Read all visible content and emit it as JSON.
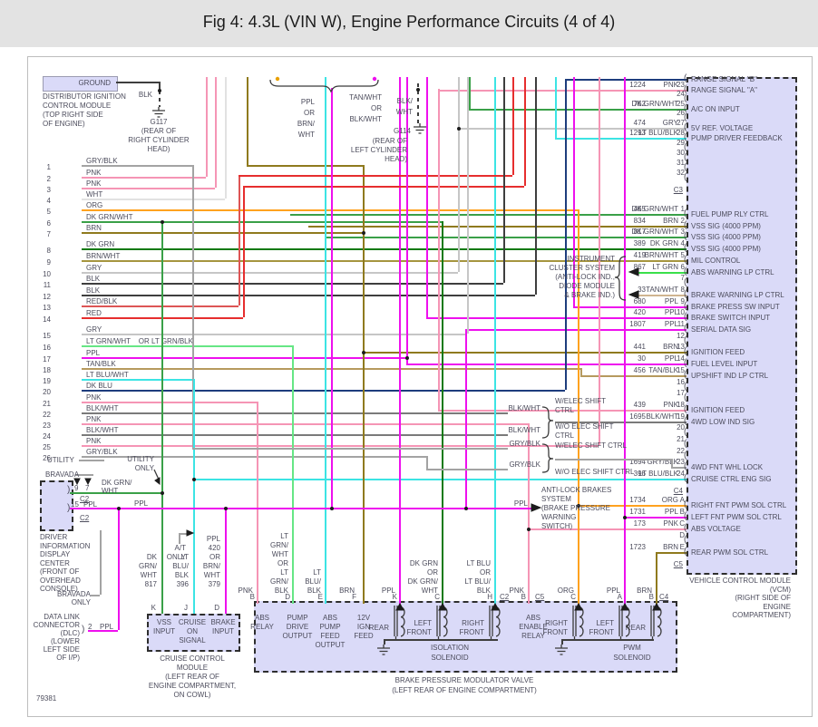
{
  "title": "Fig 4: 4.3L (VIN W), Engine Performance Circuits (4 of 4)",
  "doc_number": "79381",
  "colors": {
    "pnk": "#f595b5",
    "ppl": "#ee10ee",
    "brn": "#8f7a1e",
    "brn_wht": "#a6953f",
    "dk_grn": "#117a11",
    "dk_grn_wht": "#3aa048",
    "lt_grn": "#3ae04a",
    "lt_grn_wht": "#66e685",
    "gry": "#c6c6c6",
    "gry_blk": "#a3a3a3",
    "blk": "#3e3e3e",
    "blk_wht": "#7a7a7a",
    "wht": "#e2e2e2",
    "org": "#ffa21f",
    "red": "#e62e2e",
    "red_blk": "#dd5555",
    "lt_blu": "#3ce4e4",
    "dk_blu": "#1e3d7d",
    "tan_blk": "#b69a5e",
    "tan_wht": "#cfb490",
    "text": "#4c4c5c",
    "module_fill": "#dadaf8",
    "header_bg": "#e3e3e3",
    "panel_border": "#bdbdbd"
  },
  "left_pins": [
    {
      "pin": "1",
      "label": "GRY/BLK",
      "c": "gry_blk"
    },
    {
      "pin": "2",
      "label": "PNK",
      "c": "pnk"
    },
    {
      "pin": "3",
      "label": "PNK",
      "c": "pnk"
    },
    {
      "pin": "4",
      "label": "WHT",
      "c": "wht"
    },
    {
      "pin": "5",
      "label": "ORG",
      "c": "org"
    },
    {
      "pin": "6",
      "label": "DK GRN/WHT",
      "c": "dk_grn_wht"
    },
    {
      "pin": "7",
      "label": "BRN",
      "c": "brn"
    },
    {
      "pin": "8",
      "label": "DK GRN",
      "c": "dk_grn"
    },
    {
      "pin": "9",
      "label": "BRN/WHT",
      "c": "brn_wht"
    },
    {
      "pin": "10",
      "label": "GRY",
      "c": "gry"
    },
    {
      "pin": "11",
      "label": "BLK",
      "c": "blk"
    },
    {
      "pin": "12",
      "label": "BLK",
      "c": "blk"
    },
    {
      "pin": "13",
      "label": "RED/BLK",
      "c": "red_blk"
    },
    {
      "pin": "14",
      "label": "RED",
      "c": "red"
    },
    {
      "pin": "15",
      "label": "GRY",
      "c": "gry"
    },
    {
      "pin": "16",
      "label": "LT GRN/WHT    OR LT GRN/BLK",
      "c": "lt_grn_wht"
    },
    {
      "pin": "17",
      "label": "PPL",
      "c": "ppl"
    },
    {
      "pin": "18",
      "label": "TAN/BLK",
      "c": "tan_blk"
    },
    {
      "pin": "19",
      "label": "LT BLU/WHT",
      "c": "lt_blu"
    },
    {
      "pin": "20",
      "label": "DK BLU",
      "c": "dk_blu"
    },
    {
      "pin": "21",
      "label": "PNK",
      "c": "pnk"
    },
    {
      "pin": "22",
      "label": "BLK/WHT",
      "c": "blk_wht"
    },
    {
      "pin": "23",
      "label": "PNK",
      "c": "pnk"
    },
    {
      "pin": "24",
      "label": "BLK/WHT",
      "c": "blk_wht"
    },
    {
      "pin": "25",
      "label": "PNK",
      "c": "pnk"
    },
    {
      "pin": "26",
      "label": "GRY/BLK",
      "c": "gry_blk"
    }
  ],
  "dist_module": {
    "box_label": "GROUND",
    "lines": [
      "DISTRIBUTOR IGNITION",
      "CONTROL MODULE",
      "(TOP RIGHT SIDE",
      "OF ENGINE)"
    ],
    "wire": "BLK",
    "ground_id": "G117",
    "ground_loc": [
      "(REAR OF",
      "RIGHT CYLINDER",
      "HEAD)"
    ]
  },
  "g114": {
    "id": "G114",
    "loc": [
      "(REAR OF",
      "LEFT CYLINDER",
      "HEAD)"
    ]
  },
  "bundle_labels": {
    "a": [
      "PPL",
      "OR",
      "BRN/",
      "WHT"
    ],
    "b": [
      "TAN/WHT",
      "OR",
      "BLK/WHT"
    ],
    "c": [
      "BLK/",
      "WHT"
    ]
  },
  "vcm": {
    "connectors": [
      "C3",
      "C4",
      "C5"
    ],
    "c3_rows": [
      {
        "num": "",
        "color": "",
        "pin": "",
        "label": "RANGE SIGNAL \"B\""
      },
      {
        "num": "1224",
        "color": "PNK",
        "pin": "23",
        "label": "RANGE SIGNAL \"A\""
      },
      {
        "num": "",
        "color": "",
        "pin": "24",
        "label": ""
      },
      {
        "num": "762",
        "color": "DK GRN/WHT",
        "pin": "25",
        "label": "A/C ON INPUT"
      },
      {
        "num": "",
        "color": "",
        "pin": "26",
        "label": ""
      },
      {
        "num": "474",
        "color": "GRY",
        "pin": "27",
        "label": "5V REF. VOLTAGE"
      },
      {
        "num": "1293",
        "color": "LT BLU/BLK",
        "pin": "28",
        "label": "PUMP DRIVER FEEDBACK"
      },
      {
        "num": "",
        "color": "",
        "pin": "29",
        "label": ""
      },
      {
        "num": "",
        "color": "",
        "pin": "30",
        "label": ""
      },
      {
        "num": "",
        "color": "",
        "pin": "31",
        "label": ""
      },
      {
        "num": "",
        "color": "",
        "pin": "32",
        "label": ""
      }
    ],
    "c4_rows": [
      {
        "num": "465",
        "color": "DK GRN/WHT",
        "pin": "1",
        "label": "FUEL PUMP RLY CTRL"
      },
      {
        "num": "834",
        "color": "BRN",
        "pin": "2",
        "label": "VSS SIG (4000 PPM)"
      },
      {
        "num": "817",
        "color": "DK GRN/WHT",
        "pin": "3",
        "label": "VSS SIG (4000 PPM)"
      },
      {
        "num": "389",
        "color": "DK GRN",
        "pin": "4",
        "label": "VSS SIG (4000 PPM)"
      },
      {
        "num": "419",
        "color": "BRN/WHT",
        "pin": "5",
        "label": "MIL CONTROL"
      },
      {
        "num": "867",
        "color": "LT GRN",
        "pin": "6",
        "label": "ABS WARNING LP CTRL"
      },
      {
        "num": "",
        "color": "",
        "pin": "7",
        "label": ""
      },
      {
        "num": "33",
        "color": "TAN/WHT",
        "pin": "8",
        "label": "BRAKE WARNING LP CTRL"
      },
      {
        "num": "680",
        "color": "PPL",
        "pin": "9",
        "label": "BRAKE PRESS SW INPUT"
      },
      {
        "num": "420",
        "color": "PPL",
        "pin": "10",
        "label": "BRAKE SWITCH INPUT"
      },
      {
        "num": "1807",
        "color": "PPL",
        "pin": "11",
        "label": "SERIAL DATA SIG"
      },
      {
        "num": "",
        "color": "",
        "pin": "12",
        "label": ""
      },
      {
        "num": "441",
        "color": "BRN",
        "pin": "13",
        "label": "IGNITION FEED"
      },
      {
        "num": "30",
        "color": "PPL",
        "pin": "14",
        "label": "FUEL LEVEL INPUT"
      },
      {
        "num": "456",
        "color": "TAN/BLK",
        "pin": "15",
        "label": "UPSHIFT IND LP CTRL"
      },
      {
        "num": "",
        "color": "",
        "pin": "16",
        "label": ""
      },
      {
        "num": "",
        "color": "",
        "pin": "17",
        "label": ""
      },
      {
        "num": "439",
        "color": "PNK",
        "pin": "18",
        "label": "IGNITION FEED"
      },
      {
        "num": "1695",
        "color": "BLK/WHT",
        "pin": "19",
        "label": "4WD LOW IND SIG"
      },
      {
        "num": "",
        "color": "",
        "pin": "20",
        "label": ""
      },
      {
        "num": "",
        "color": "",
        "pin": "21",
        "label": ""
      },
      {
        "num": "",
        "color": "",
        "pin": "22",
        "label": ""
      },
      {
        "num": "1694",
        "color": "GRY/BLK",
        "pin": "23",
        "label": "4WD FNT WHL LOCK"
      },
      {
        "num": "396",
        "color": "LT BLU/BLK",
        "pin": "24",
        "label": "CRUISE CTRL ENG SIG"
      }
    ],
    "c5_rows": [
      {
        "num": "1734",
        "color": "ORG",
        "pin": "A",
        "label": "RIGHT FNT PWM SOL CTRL"
      },
      {
        "num": "1731",
        "color": "PPL",
        "pin": "B",
        "label": "LEFT FNT PWM SOL CTRL"
      },
      {
        "num": "173",
        "color": "PNK",
        "pin": "C",
        "label": "ABS VOLTAGE"
      },
      {
        "num": "",
        "color": "",
        "pin": "D",
        "label": ""
      },
      {
        "num": "1723",
        "color": "BRN",
        "pin": "E",
        "label": "REAR PWM SOL CTRL"
      }
    ],
    "footer": [
      "VEHICLE CONTROL MODULE",
      "(VCM)",
      "(RIGHT SIDE OF",
      "ENGINE",
      "COMPARTMENT)"
    ]
  },
  "cluster": {
    "lines": [
      "INSTRUMENT",
      "CLUSTER SYSTEM",
      "(ANTI-LOCK IND.,",
      "DIODE MODULE",
      "& BRAKE IND.)"
    ]
  },
  "shift": {
    "groups": [
      {
        "wire": "BLK/WHT",
        "top": [
          "W/ELEC SHIFT",
          "CTRL"
        ],
        "bottom": [
          "W/O ELEC SHIFT",
          "CTRL"
        ]
      },
      {
        "wire": "GRY/BLK",
        "top": [
          "W/ELEC SHIFT CTRL"
        ],
        "bottom": [
          "W/O ELEC SHIFT CTRL"
        ]
      }
    ]
  },
  "abs_switch": {
    "wire": "PPL",
    "lines": [
      "ANTI-LOCK BRAKES",
      "SYSTEM",
      "(BRAKE PRESSURE",
      "WARNING",
      "SWITCH)"
    ]
  },
  "didc": {
    "utility": "UTILITY",
    "bravada": "BRAVADA",
    "utility_only": [
      "UTILITY",
      "ONLY"
    ],
    "p9": "9",
    "p7": "7",
    "c2": "C2",
    "p15": "15",
    "ppl": "PPL",
    "ppl2": "PPL",
    "wire_label": [
      "DK GRN/",
      "WHT"
    ],
    "lines": [
      "DRIVER",
      "INFORMATION",
      "DISPLAY",
      "CENTER",
      "(FRONT OF",
      "OVERHEAD",
      "CONSOLE)"
    ],
    "bravada_only": [
      "BRAVADA",
      "ONLY"
    ]
  },
  "dlc": {
    "pin": "2",
    "wire": "PPL",
    "lines": [
      "DATA LINK",
      "CONNECTOR",
      "(DLC)",
      "(LOWER",
      "LEFT SIDE",
      "OF I/P)"
    ]
  },
  "ccm": {
    "at_only": [
      "A/T",
      "ONLY"
    ],
    "stacks": [
      [
        "DK",
        "GRN/",
        "WHT",
        "817"
      ],
      [
        "LT",
        "BLU/",
        "BLK",
        "396"
      ],
      [
        "PPL",
        "420",
        "OR",
        "BRN/",
        "WHT",
        "379"
      ]
    ],
    "terminals": [
      "K",
      "J",
      "D"
    ],
    "labels": [
      [
        "VSS",
        "INPUT"
      ],
      [
        "CRUISE",
        "ON",
        "SIGNAL"
      ],
      [
        "BRAKE",
        "INPUT"
      ]
    ],
    "footer": [
      "CRUISE CONTROL",
      "MODULE",
      "(LEFT REAR OF",
      "ENGINE COMPARTMENT,",
      "ON COWL)"
    ]
  },
  "bpmv": {
    "terminals": [
      {
        "letter": "B",
        "wire_lines": [
          "PNK"
        ],
        "label_lines": [
          "ABS",
          "RELAY"
        ]
      },
      {
        "letter": "D",
        "wire_lines": [
          "LT",
          "GRN/",
          "WHT",
          "OR",
          "LT",
          "GRN/",
          "BLK"
        ],
        "label_lines": [
          "PUMP",
          "DRIVE",
          "OUTPUT"
        ]
      },
      {
        "letter": "E",
        "wire_lines": [
          "LT",
          "BLU/",
          "BLK"
        ],
        "label_lines": [
          "ABS",
          "PUMP",
          "FEED",
          "OUTPUT"
        ]
      },
      {
        "letter": "F",
        "wire_lines": [
          "BRN"
        ],
        "label_lines": [
          "12V",
          "IGN",
          "FEED"
        ]
      },
      {
        "letter": "K",
        "wire_lines": [
          "PPL"
        ],
        "label_lines": [
          "REAR"
        ]
      },
      {
        "letter": "C",
        "wire_lines": [
          "DK GRN",
          "OR",
          "DK GRN/",
          "WHT"
        ],
        "label_lines": [
          "LEFT",
          "FRONT"
        ]
      },
      {
        "letter": "H",
        "wire_lines": [
          "LT BLU",
          "OR",
          "LT BLU/",
          "BLK"
        ],
        "label_lines": [
          "RIGHT",
          "FRONT"
        ]
      },
      {
        "letter": "B",
        "wire_lines": [
          "PNK"
        ],
        "label_lines": [
          "ABS",
          "ENABLE",
          "RELAY"
        ]
      },
      {
        "letter": "C",
        "wire_lines": [
          "ORG"
        ],
        "label_lines": [
          "RIGHT",
          "FRONT"
        ]
      },
      {
        "letter": "A",
        "wire_lines": [
          "PPL"
        ],
        "label_lines": [
          "LEFT",
          "FRONT"
        ]
      },
      {
        "letter": "B",
        "wire_lines": [
          "BRN"
        ],
        "label_lines": [
          "REAR"
        ]
      }
    ],
    "connectors": [
      "C2",
      "C5",
      "C4"
    ],
    "iso": [
      "ISOLATION",
      "SOLENOID"
    ],
    "pwm": [
      "PWM",
      "SOLENOID"
    ],
    "footer": [
      "BRAKE PRESSURE MODULATOR VALVE",
      "(LEFT REAR OF ENGINE COMPARTMENT)"
    ]
  }
}
